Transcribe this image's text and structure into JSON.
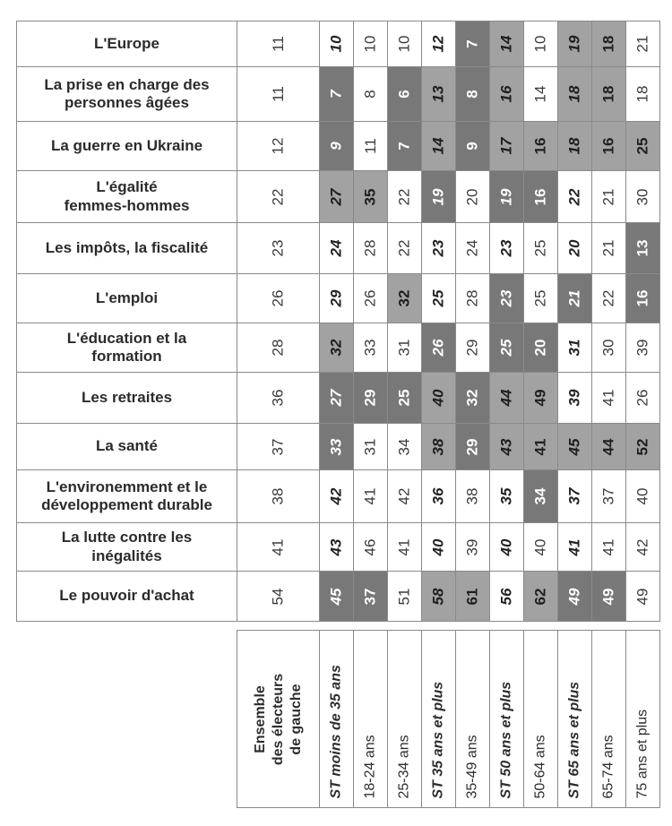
{
  "colors": {
    "above_average_bg": "#a2a2a2",
    "below_average_bg": "#787878",
    "below_average_text": "#ffffff",
    "grid_border": "#8a8a8a",
    "label_text": "#2b2b2b",
    "number_text": "#3b3b3b"
  },
  "chart_data": {
    "type": "table",
    "orientation": "numbers and headers rotated 90deg counterclockwise",
    "columns": [
      {
        "label": "Ensemble\ndes électeurs\nde gauche",
        "type": "ensemble"
      },
      {
        "label": "ST moins de 35 ans",
        "type": "st"
      },
      {
        "label": "18-24 ans",
        "type": "age"
      },
      {
        "label": "25-34 ans",
        "type": "age"
      },
      {
        "label": "ST 35 ans et plus",
        "type": "st"
      },
      {
        "label": "35-49 ans",
        "type": "age"
      },
      {
        "label": "ST 50 ans et plus",
        "type": "st"
      },
      {
        "label": "50-64 ans",
        "type": "age"
      },
      {
        "label": "ST 65 ans et plus",
        "type": "st"
      },
      {
        "label": "65-74 ans",
        "type": "age"
      },
      {
        "label": "75 ans et plus",
        "type": "age"
      }
    ],
    "rows": [
      {
        "label": "L'Europe",
        "cells": [
          {
            "v": 11,
            "bg": "w"
          },
          {
            "v": 10,
            "bg": "w"
          },
          {
            "v": 10,
            "bg": "w"
          },
          {
            "v": 10,
            "bg": "w"
          },
          {
            "v": 12,
            "bg": "w"
          },
          {
            "v": 7,
            "bg": "lo"
          },
          {
            "v": 14,
            "bg": "hi"
          },
          {
            "v": 10,
            "bg": "w"
          },
          {
            "v": 19,
            "bg": "hi"
          },
          {
            "v": 18,
            "bg": "hi"
          },
          {
            "v": 21,
            "bg": "w"
          }
        ]
      },
      {
        "label": "La prise en charge des\npersonnes âgées",
        "cells": [
          {
            "v": 11,
            "bg": "w"
          },
          {
            "v": 7,
            "bg": "lo"
          },
          {
            "v": 8,
            "bg": "w"
          },
          {
            "v": 6,
            "bg": "lo"
          },
          {
            "v": 13,
            "bg": "hi"
          },
          {
            "v": 8,
            "bg": "lo"
          },
          {
            "v": 16,
            "bg": "hi"
          },
          {
            "v": 14,
            "bg": "w"
          },
          {
            "v": 18,
            "bg": "hi"
          },
          {
            "v": 18,
            "bg": "hi"
          },
          {
            "v": 18,
            "bg": "w"
          }
        ]
      },
      {
        "label": "La guerre en Ukraine",
        "cells": [
          {
            "v": 12,
            "bg": "w"
          },
          {
            "v": 9,
            "bg": "lo"
          },
          {
            "v": 11,
            "bg": "w"
          },
          {
            "v": 7,
            "bg": "lo"
          },
          {
            "v": 14,
            "bg": "hi"
          },
          {
            "v": 9,
            "bg": "lo"
          },
          {
            "v": 17,
            "bg": "hi"
          },
          {
            "v": 16,
            "bg": "hi"
          },
          {
            "v": 18,
            "bg": "hi"
          },
          {
            "v": 16,
            "bg": "hi"
          },
          {
            "v": 25,
            "bg": "hi"
          }
        ]
      },
      {
        "label": "L'égalité\nfemmes-hommes",
        "cells": [
          {
            "v": 22,
            "bg": "w"
          },
          {
            "v": 27,
            "bg": "hi"
          },
          {
            "v": 35,
            "bg": "hi"
          },
          {
            "v": 22,
            "bg": "w"
          },
          {
            "v": 19,
            "bg": "lo"
          },
          {
            "v": 20,
            "bg": "w"
          },
          {
            "v": 19,
            "bg": "lo"
          },
          {
            "v": 16,
            "bg": "lo"
          },
          {
            "v": 22,
            "bg": "w"
          },
          {
            "v": 21,
            "bg": "w"
          },
          {
            "v": 30,
            "bg": "w"
          }
        ]
      },
      {
        "label": "Les impôts, la fiscalité",
        "cells": [
          {
            "v": 23,
            "bg": "w"
          },
          {
            "v": 24,
            "bg": "w"
          },
          {
            "v": 28,
            "bg": "w"
          },
          {
            "v": 22,
            "bg": "w"
          },
          {
            "v": 23,
            "bg": "w"
          },
          {
            "v": 24,
            "bg": "w"
          },
          {
            "v": 23,
            "bg": "w"
          },
          {
            "v": 25,
            "bg": "w"
          },
          {
            "v": 20,
            "bg": "w"
          },
          {
            "v": 21,
            "bg": "w"
          },
          {
            "v": 13,
            "bg": "lo"
          }
        ]
      },
      {
        "label": "L'emploi",
        "cells": [
          {
            "v": 26,
            "bg": "w"
          },
          {
            "v": 29,
            "bg": "w"
          },
          {
            "v": 26,
            "bg": "w"
          },
          {
            "v": 32,
            "bg": "hi"
          },
          {
            "v": 25,
            "bg": "w"
          },
          {
            "v": 28,
            "bg": "w"
          },
          {
            "v": 23,
            "bg": "lo"
          },
          {
            "v": 25,
            "bg": "w"
          },
          {
            "v": 21,
            "bg": "lo"
          },
          {
            "v": 22,
            "bg": "w"
          },
          {
            "v": 16,
            "bg": "lo"
          }
        ]
      },
      {
        "label": "L'éducation et la\nformation",
        "cells": [
          {
            "v": 28,
            "bg": "w"
          },
          {
            "v": 32,
            "bg": "hi"
          },
          {
            "v": 33,
            "bg": "w"
          },
          {
            "v": 31,
            "bg": "w"
          },
          {
            "v": 26,
            "bg": "lo"
          },
          {
            "v": 29,
            "bg": "w"
          },
          {
            "v": 25,
            "bg": "lo"
          },
          {
            "v": 20,
            "bg": "lo"
          },
          {
            "v": 31,
            "bg": "w"
          },
          {
            "v": 30,
            "bg": "w"
          },
          {
            "v": 39,
            "bg": "w"
          }
        ]
      },
      {
        "label": "Les retraites",
        "cells": [
          {
            "v": 36,
            "bg": "w"
          },
          {
            "v": 27,
            "bg": "lo"
          },
          {
            "v": 29,
            "bg": "lo"
          },
          {
            "v": 25,
            "bg": "lo"
          },
          {
            "v": 40,
            "bg": "hi"
          },
          {
            "v": 32,
            "bg": "lo"
          },
          {
            "v": 44,
            "bg": "hi"
          },
          {
            "v": 49,
            "bg": "hi"
          },
          {
            "v": 39,
            "bg": "w"
          },
          {
            "v": 41,
            "bg": "w"
          },
          {
            "v": 26,
            "bg": "w"
          }
        ]
      },
      {
        "label": "La santé",
        "cells": [
          {
            "v": 37,
            "bg": "w"
          },
          {
            "v": 33,
            "bg": "lo"
          },
          {
            "v": 31,
            "bg": "w"
          },
          {
            "v": 34,
            "bg": "w"
          },
          {
            "v": 38,
            "bg": "hi"
          },
          {
            "v": 29,
            "bg": "lo"
          },
          {
            "v": 43,
            "bg": "hi"
          },
          {
            "v": 41,
            "bg": "hi"
          },
          {
            "v": 45,
            "bg": "hi"
          },
          {
            "v": 44,
            "bg": "hi"
          },
          {
            "v": 52,
            "bg": "hi"
          }
        ]
      },
      {
        "label": "L'environemment et le\ndéveloppement durable",
        "cells": [
          {
            "v": 38,
            "bg": "w"
          },
          {
            "v": 42,
            "bg": "w"
          },
          {
            "v": 41,
            "bg": "w"
          },
          {
            "v": 42,
            "bg": "w"
          },
          {
            "v": 36,
            "bg": "w"
          },
          {
            "v": 38,
            "bg": "w"
          },
          {
            "v": 35,
            "bg": "w"
          },
          {
            "v": 34,
            "bg": "lo"
          },
          {
            "v": 37,
            "bg": "w"
          },
          {
            "v": 37,
            "bg": "w"
          },
          {
            "v": 40,
            "bg": "w"
          }
        ]
      },
      {
        "label": "La lutte contre les\ninégalités",
        "cells": [
          {
            "v": 41,
            "bg": "w"
          },
          {
            "v": 43,
            "bg": "w"
          },
          {
            "v": 46,
            "bg": "w"
          },
          {
            "v": 41,
            "bg": "w"
          },
          {
            "v": 40,
            "bg": "w"
          },
          {
            "v": 39,
            "bg": "w"
          },
          {
            "v": 40,
            "bg": "w"
          },
          {
            "v": 40,
            "bg": "w"
          },
          {
            "v": 41,
            "bg": "w"
          },
          {
            "v": 41,
            "bg": "w"
          },
          {
            "v": 42,
            "bg": "w"
          }
        ]
      },
      {
        "label": "Le  pouvoir d'achat",
        "cells": [
          {
            "v": 54,
            "bg": "w"
          },
          {
            "v": 45,
            "bg": "lo"
          },
          {
            "v": 37,
            "bg": "lo"
          },
          {
            "v": 51,
            "bg": "w"
          },
          {
            "v": 58,
            "bg": "hi"
          },
          {
            "v": 61,
            "bg": "hi"
          },
          {
            "v": 56,
            "bg": "w"
          },
          {
            "v": 62,
            "bg": "hi"
          },
          {
            "v": 49,
            "bg": "lo"
          },
          {
            "v": 49,
            "bg": "lo"
          },
          {
            "v": 49,
            "bg": "w"
          }
        ]
      }
    ]
  }
}
